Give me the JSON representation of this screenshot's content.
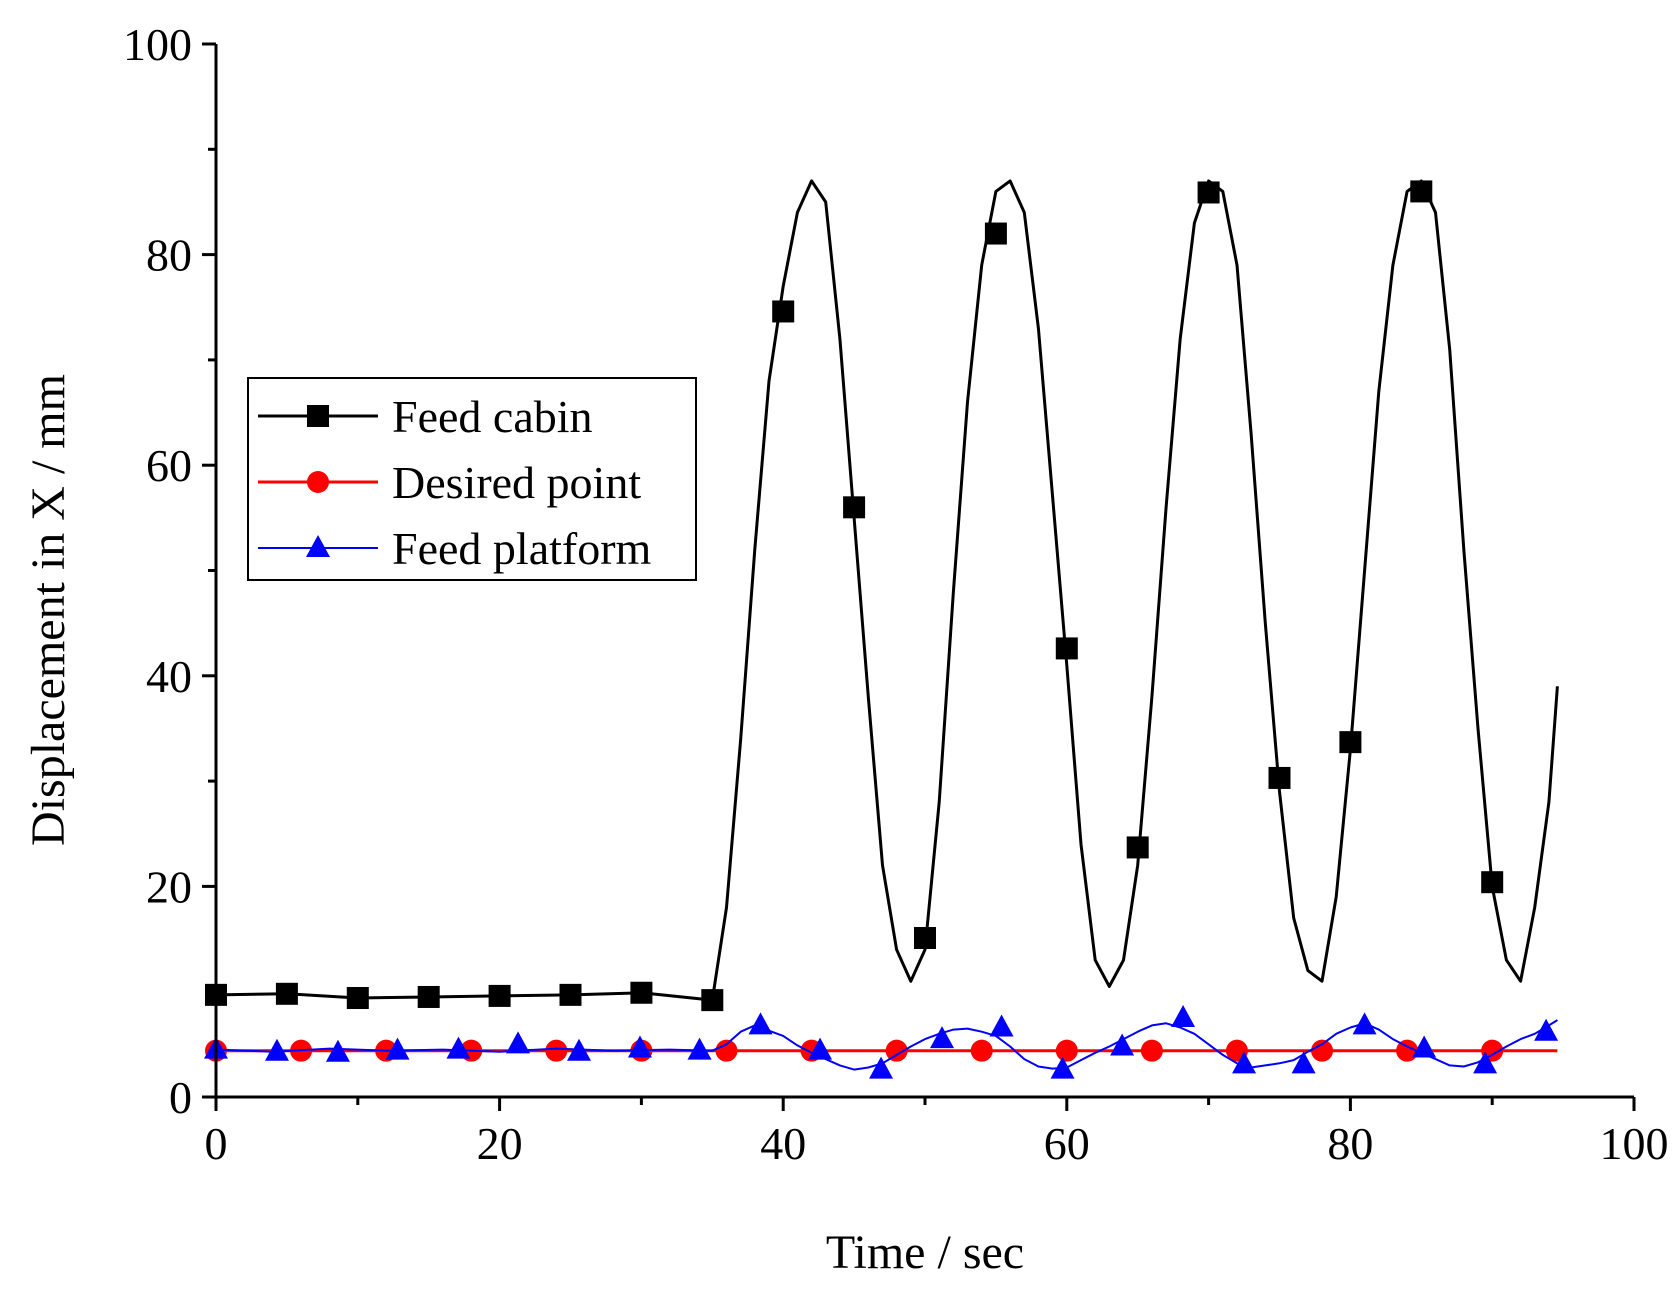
{
  "chart_data": {
    "type": "line",
    "xlabel": "Time / sec",
    "ylabel": "Displacement in X / mm",
    "xlim": [
      0,
      100
    ],
    "ylim": [
      0,
      100
    ],
    "xticks": [
      "0",
      "20",
      "40",
      "60",
      "80",
      "100"
    ],
    "yticks": [
      "0",
      "20",
      "40",
      "60",
      "80",
      "100"
    ],
    "legend_position": "left-middle",
    "series": [
      {
        "name": "Feed cabin",
        "color": "#000000",
        "marker": "square",
        "x": [
          0,
          5,
          10,
          15,
          20,
          25,
          30,
          35,
          36,
          37,
          38,
          39,
          40,
          41,
          42,
          43,
          44,
          45,
          46,
          47,
          48,
          49,
          50,
          51,
          52,
          53,
          54,
          55,
          56,
          57,
          58,
          59,
          60,
          61,
          62,
          63,
          64,
          65,
          66,
          67,
          68,
          69,
          70,
          71,
          72,
          73,
          74,
          75,
          76,
          77,
          78,
          79,
          80,
          81,
          82,
          83,
          84,
          85,
          86,
          87,
          88,
          89,
          90,
          91,
          92,
          93,
          94,
          94.6
        ],
        "y": [
          9.7,
          9.8,
          9.4,
          9.5,
          9.6,
          9.7,
          9.9,
          9.2,
          18,
          34,
          52,
          68,
          77,
          84,
          87,
          85,
          72,
          55,
          38,
          22,
          14,
          11,
          14,
          28,
          48,
          66,
          79,
          86,
          87,
          84,
          73,
          57,
          41,
          24,
          13,
          10.5,
          13,
          22,
          38,
          56,
          72,
          83,
          87,
          86,
          79,
          63,
          45,
          29,
          17,
          12,
          11,
          19,
          33,
          50,
          67,
          79,
          86,
          87,
          84,
          71,
          52,
          35,
          20,
          13,
          11,
          18,
          28,
          39
        ],
        "marker_x": [
          0,
          5,
          10,
          15,
          20,
          25,
          30,
          35,
          40,
          45,
          50,
          55,
          60,
          65,
          70,
          75,
          80,
          85,
          90
        ],
        "marker_y": [
          9.7,
          9.8,
          9.4,
          9.5,
          9.6,
          9.7,
          9.9,
          9.2,
          74.6,
          56,
          15.1,
          82,
          42.6,
          23.7,
          85.9,
          30.3,
          33.7,
          86,
          20.4
        ]
      },
      {
        "name": "Desired point",
        "color": "#ff0000",
        "marker": "circle",
        "x": [
          0,
          94.6
        ],
        "y": [
          4.4,
          4.4
        ],
        "marker_x": [
          0,
          6,
          12,
          18,
          24,
          30,
          36,
          42,
          48,
          54,
          60,
          66,
          72,
          78,
          84,
          90
        ],
        "marker_y": [
          4.4,
          4.4,
          4.4,
          4.4,
          4.4,
          4.4,
          4.4,
          4.4,
          4.4,
          4.4,
          4.4,
          4.4,
          4.4,
          4.4,
          4.4,
          4.4
        ]
      },
      {
        "name": "Feed platform",
        "color": "#0000ff",
        "marker": "triangle",
        "x": [
          0,
          4,
          8,
          12,
          16,
          20,
          24,
          28,
          32,
          35,
          36,
          37,
          38,
          39,
          40,
          41,
          42,
          43,
          44,
          45,
          46,
          47,
          48,
          49,
          50,
          51,
          52,
          53,
          54,
          55,
          56,
          57,
          58,
          59,
          60,
          61,
          62,
          63,
          64,
          65,
          66,
          67,
          68,
          69,
          70,
          71,
          72,
          73,
          74,
          75,
          76,
          77,
          78,
          79,
          80,
          81,
          82,
          83,
          84,
          85,
          86,
          87,
          88,
          89,
          90,
          91,
          92,
          93,
          94,
          94.6
        ],
        "y": [
          4.5,
          4.3,
          4.6,
          4.4,
          4.5,
          4.3,
          4.6,
          4.4,
          4.5,
          4.4,
          5.0,
          6.2,
          6.8,
          6.3,
          5.8,
          4.9,
          4.2,
          3.6,
          3.0,
          2.6,
          2.8,
          3.2,
          4.0,
          4.8,
          5.5,
          6.0,
          6.4,
          6.5,
          6.2,
          5.8,
          4.8,
          3.6,
          2.9,
          2.7,
          2.8,
          3.5,
          4.2,
          4.8,
          5.5,
          6.2,
          6.8,
          7.0,
          6.6,
          6.0,
          5.0,
          4.0,
          3.2,
          2.8,
          3.0,
          3.2,
          3.5,
          4.3,
          5.0,
          6.0,
          6.6,
          7.0,
          6.4,
          5.5,
          4.8,
          4.2,
          3.6,
          3.0,
          2.9,
          3.3,
          4.0,
          4.8,
          5.5,
          6.0,
          6.8,
          7.3
        ],
        "marker_x": [
          0,
          4.3,
          8.6,
          12.8,
          17.1,
          21.3,
          25.6,
          29.9,
          34.1,
          38.4,
          42.6,
          46.9,
          51.2,
          55.4,
          59.7,
          63.9,
          68.2,
          72.5,
          76.7,
          81.0,
          85.2,
          89.5,
          93.8
        ],
        "marker_y": [
          4.5,
          4.3,
          4.2,
          4.4,
          4.5,
          5.0,
          4.3,
          4.6,
          4.4,
          6.8,
          4.4,
          2.6,
          5.5,
          6.6,
          2.6,
          4.8,
          7.5,
          3.1,
          3.1,
          6.8,
          4.6,
          3.1,
          6.2
        ]
      }
    ]
  }
}
